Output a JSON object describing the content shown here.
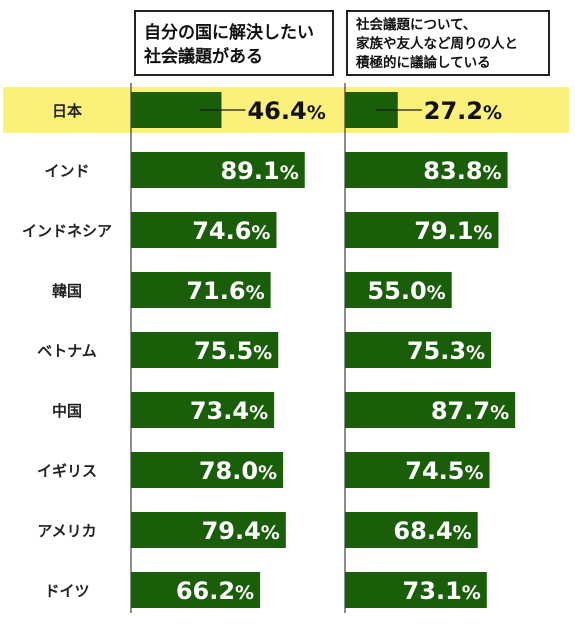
{
  "colors": {
    "bar": "#1a5e0a",
    "highlight": "#faf07a",
    "label_text": "#ffffff",
    "highlight_value_text": "#111111",
    "category_text": "#222222",
    "axis_line": "#1a1a1a"
  },
  "chart_data": [
    {
      "type": "bar",
      "orientation": "horizontal",
      "title_lines": [
        "自分の国に解決したい",
        "社会議題がある"
      ],
      "categories": [
        "日本",
        "インド",
        "インドネシア",
        "韓国",
        "ベトナム",
        "中国",
        "イギリス",
        "アメリカ",
        "ドイツ"
      ],
      "values": [
        46.4,
        89.1,
        74.6,
        71.6,
        75.5,
        73.4,
        78.0,
        79.4,
        66.2
      ],
      "value_labels": [
        "46.4",
        "89.1",
        "74.6",
        "71.6",
        "75.5",
        "73.4",
        "78.0",
        "79.4",
        "66.2"
      ],
      "unit": "%",
      "highlight_category": "日本",
      "xlim": [
        0,
        100
      ]
    },
    {
      "type": "bar",
      "orientation": "horizontal",
      "title_lines": [
        "社会議題について、",
        "家族や友人など周りの人と",
        "積極的に議論している"
      ],
      "categories": [
        "日本",
        "インド",
        "インドネシア",
        "韓国",
        "ベトナム",
        "中国",
        "イギリス",
        "アメリカ",
        "ドイツ"
      ],
      "values": [
        27.2,
        83.8,
        79.1,
        55.0,
        75.3,
        87.7,
        74.5,
        68.4,
        73.1
      ],
      "value_labels": [
        "27.2",
        "83.8",
        "79.1",
        "55.0",
        "75.3",
        "87.7",
        "74.5",
        "68.4",
        "73.1"
      ],
      "unit": "%",
      "highlight_category": "日本",
      "xlim": [
        0,
        100
      ]
    }
  ]
}
